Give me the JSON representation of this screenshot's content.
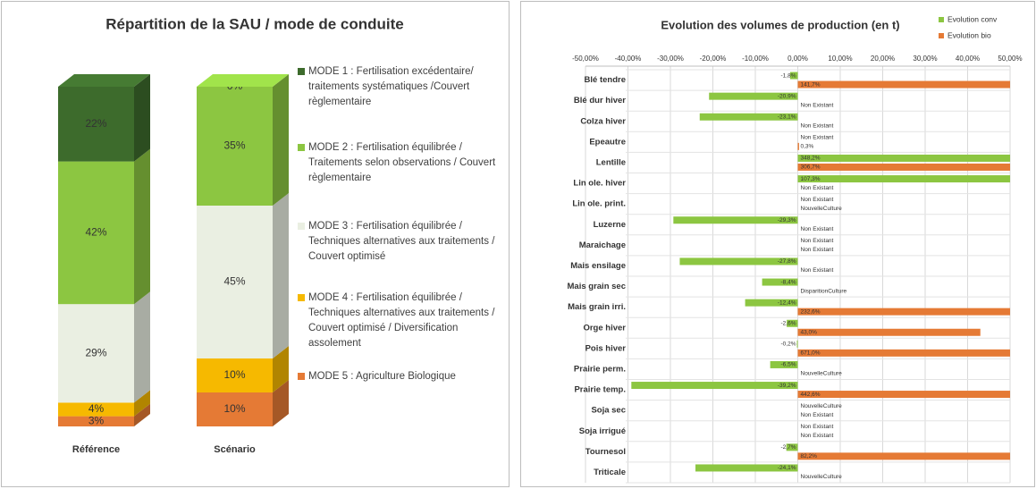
{
  "chart_data": [
    {
      "type": "bar",
      "stacked": true,
      "legend": "right",
      "title": "Répartition de la SAU / mode de conduite",
      "categories": [
        "Référence",
        "Scénario"
      ],
      "series": [
        {
          "name": "MODE 1 : Fertilisation excédentaire/ traitements systématiques /Couvert règlementaire",
          "color": "#3d6b2c",
          "values": [
            22,
            0
          ],
          "value_labels": [
            "22%",
            "0%"
          ]
        },
        {
          "name": "MODE 2 : Fertilisation équilibrée / Traitements selon observations / Couvert règlementaire",
          "color": "#8cc641",
          "values": [
            42,
            35
          ],
          "value_labels": [
            "42%",
            "35%"
          ]
        },
        {
          "name": "MODE 3 : Fertilisation équilibrée / Techniques alternatives aux traitements / Couvert optimisé",
          "color": "#eaefe2",
          "values": [
            29,
            45
          ],
          "value_labels": [
            "29%",
            "45%"
          ]
        },
        {
          "name": "MODE 4 : Fertilisation équilibrée / Techniques alternatives aux traitements / Couvert optimisé / Diversification assolement",
          "color": "#f6b900",
          "values": [
            4,
            10
          ],
          "value_labels": [
            "4%",
            "10%"
          ]
        },
        {
          "name": "MODE 5 : Agriculture Biologique",
          "color": "#e57a35",
          "values": [
            3,
            10
          ],
          "value_labels": [
            "3%",
            "10%"
          ]
        }
      ]
    },
    {
      "type": "barh",
      "legend": "top-right",
      "grid": true,
      "title": "Evolution des volumes de production (en t)",
      "categories": [
        "Blé tendre",
        "Blé dur hiver",
        "Colza hiver",
        "Epeautre",
        "Lentille",
        "Lin ole. hiver",
        "Lin ole. print.",
        "Luzerne",
        "Maraichage",
        "Mais ensilage",
        "Mais grain sec",
        "Mais grain irri.",
        "Orge hiver",
        "Pois hiver",
        "Prairie perm.",
        "Prairie temp.",
        "Soja sec",
        "Soja irrigué",
        "Tournesol",
        "Triticale"
      ],
      "xlim": [
        -50,
        50
      ],
      "xticks": [
        {
          "value": -50,
          "label": "-50,00%"
        },
        {
          "value": -40,
          "label": "-40,00%"
        },
        {
          "value": -30,
          "label": "-30,00%"
        },
        {
          "value": -20,
          "label": "-20,00%"
        },
        {
          "value": -10,
          "label": "-10,00%"
        },
        {
          "value": 0,
          "label": "0,00%"
        },
        {
          "value": 10,
          "label": "10,00%"
        },
        {
          "value": 20,
          "label": "20,00%"
        },
        {
          "value": 30,
          "label": "30,00%"
        },
        {
          "value": 40,
          "label": "40,00%"
        },
        {
          "value": 50,
          "label": "50,00%"
        }
      ],
      "series": [
        {
          "name": "Evolution conv",
          "color": "#8cc641",
          "values": [
            -1.8,
            -20.9,
            -23.1,
            null,
            348.2,
            107.3,
            null,
            -29.3,
            null,
            -27.8,
            -8.4,
            -12.4,
            -2.6,
            -0.2,
            -6.5,
            -39.2,
            null,
            null,
            -2.7,
            -24.1
          ],
          "value_labels": [
            "-1,8%",
            "-20,9%",
            "-23,1%",
            "Non Existant",
            "348,2%",
            "107,3%",
            "Non Existant",
            "-29,3%",
            "Non Existant",
            "-27,8%",
            "-8,4%",
            "-12,4%",
            "-2,6%",
            "-0,2%",
            "-6,5%",
            "-39,2%",
            "NouvelleCulture",
            "Non Existant",
            "-2,7%",
            "-24,1%"
          ]
        },
        {
          "name": "Evolution bio",
          "color": "#e57a35",
          "values": [
            141.7,
            null,
            null,
            0.3,
            306.7,
            null,
            null,
            null,
            null,
            null,
            null,
            232.6,
            43.0,
            671.0,
            null,
            442.6,
            null,
            null,
            82.2,
            null
          ],
          "value_labels": [
            "141,7%",
            "Non Existant",
            "Non Existant",
            "0,3%",
            "306,7%",
            "Non Existant",
            "NouvelleCulture",
            "Non Existant",
            "Non Existant",
            "Non Existant",
            "DisparitionCulture",
            "232,6%",
            "43,0%",
            "671,0%",
            "NouvelleCulture",
            "442,6%",
            "Non Existant",
            "Non Existant",
            "82,2%",
            "NouvelleCulture"
          ]
        }
      ]
    }
  ]
}
